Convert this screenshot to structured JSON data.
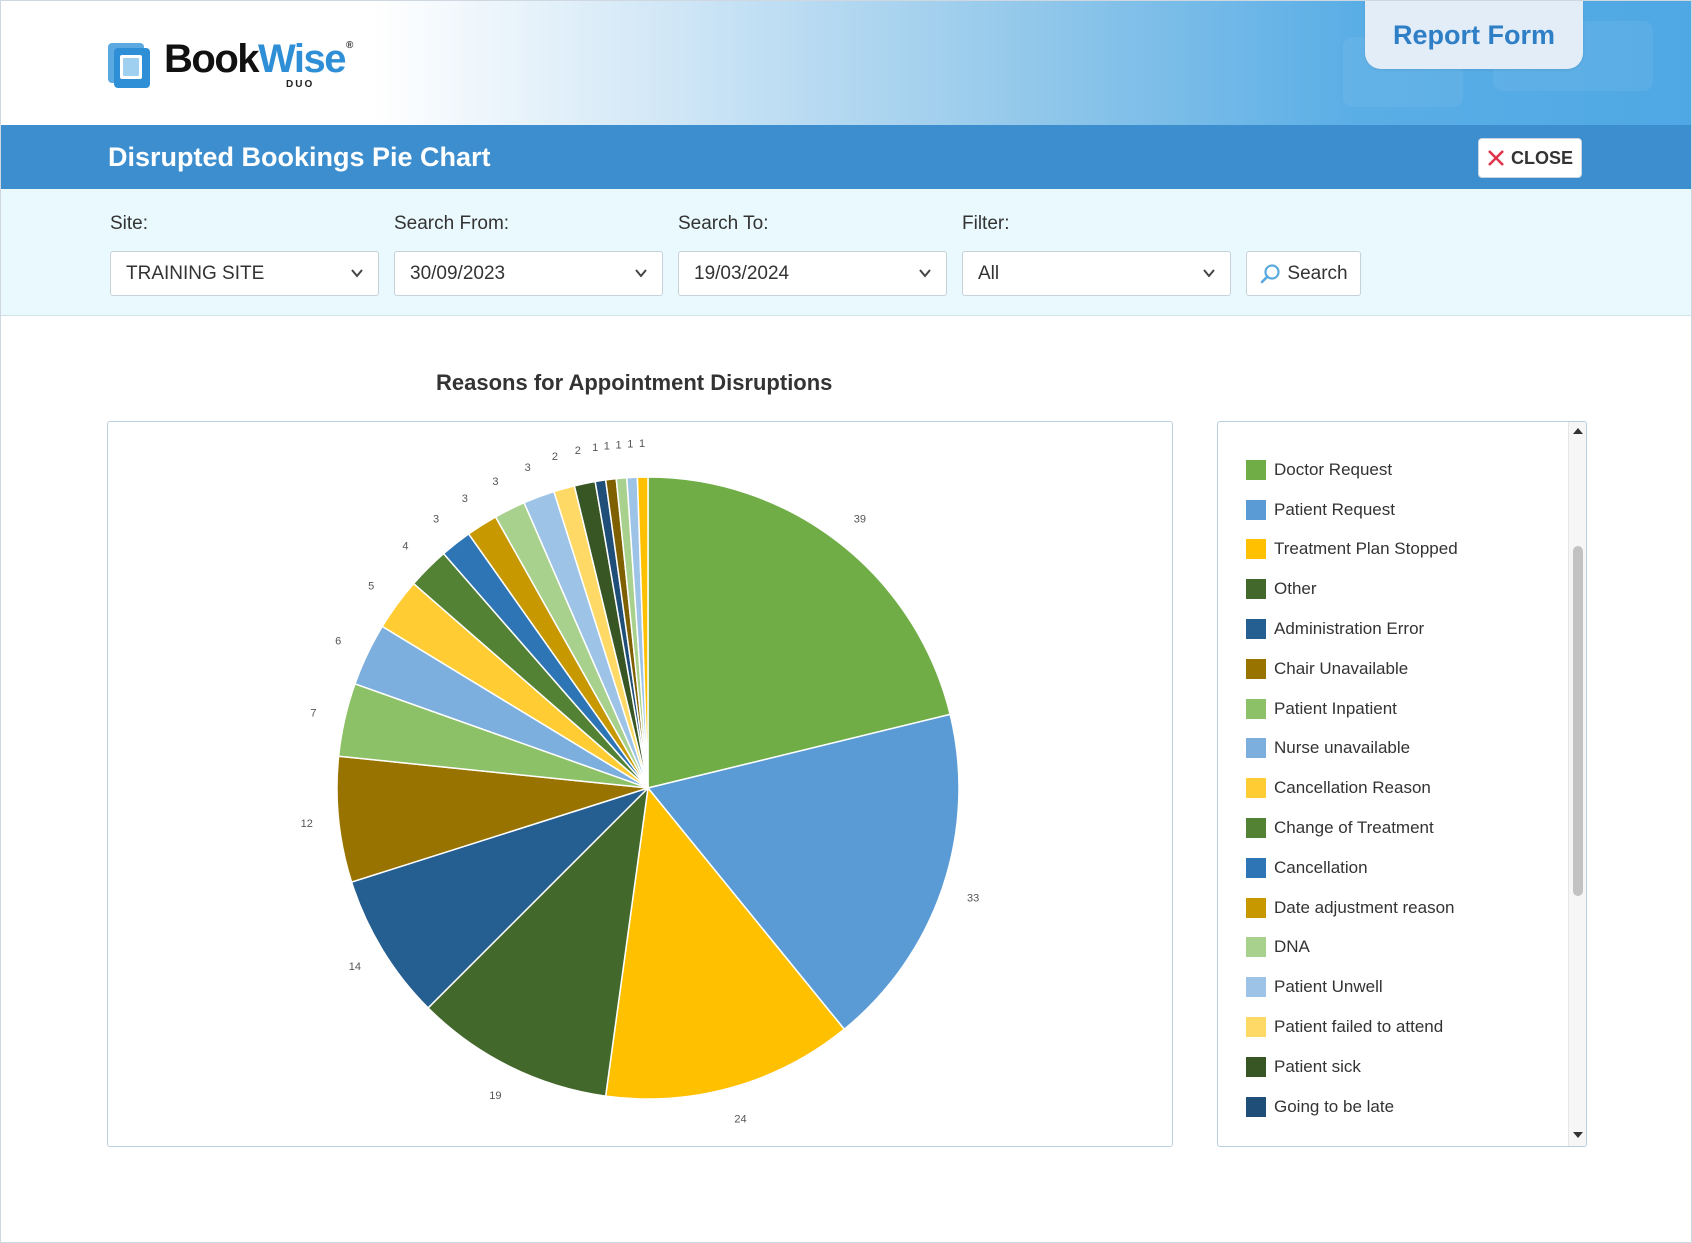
{
  "app": {
    "logo_text_1": "Book",
    "logo_text_2": "Wise",
    "logo_reg": "®",
    "logo_sub": "DUO",
    "report_form_label": "Report Form"
  },
  "header": {
    "title": "Disrupted Bookings Pie Chart",
    "close_label": "CLOSE",
    "close_icon": "close-x-icon"
  },
  "filters": {
    "site_label": "Site:",
    "site_value": "TRAINING SITE",
    "from_label": "Search From:",
    "from_value": "30/09/2023",
    "to_label": "Search To:",
    "to_value": "19/03/2024",
    "filter_label": "Filter:",
    "filter_value": "All",
    "search_label": "Search",
    "search_icon": "search-icon"
  },
  "chart_data": {
    "type": "pie",
    "title": "Reasons for Appointment Disruptions",
    "legend_position": "right",
    "categories": [
      "Doctor Request",
      "Patient Request",
      "Treatment Plan Stopped",
      "Other",
      "Administration Error",
      "Chair Unavailable",
      "Patient Inpatient",
      "Nurse unavailable",
      "Cancellation Reason",
      "Change of Treatment",
      "Cancellation",
      "Date adjustment reason",
      "DNA",
      "Patient Unwell",
      "Patient failed to attend",
      "Patient sick",
      "Going to be late",
      "",
      "",
      "",
      ""
    ],
    "values": [
      39,
      33,
      24,
      19,
      14,
      12,
      7,
      6,
      5,
      4,
      3,
      3,
      3,
      3,
      2,
      2,
      1,
      1,
      1,
      1,
      1
    ],
    "colors": [
      "#70ad47",
      "#5b9bd5",
      "#ffc000",
      "#43682b",
      "#255e91",
      "#997300",
      "#8cc168",
      "#7cafdd",
      "#ffcd33",
      "#548235",
      "#2e75b6",
      "#c89800",
      "#a9d18e",
      "#9dc3e6",
      "#ffd966",
      "#375623",
      "#1f4e79",
      "#7f6000",
      "#a9d18e",
      "#9dc3e6",
      "#ffc000"
    ]
  }
}
